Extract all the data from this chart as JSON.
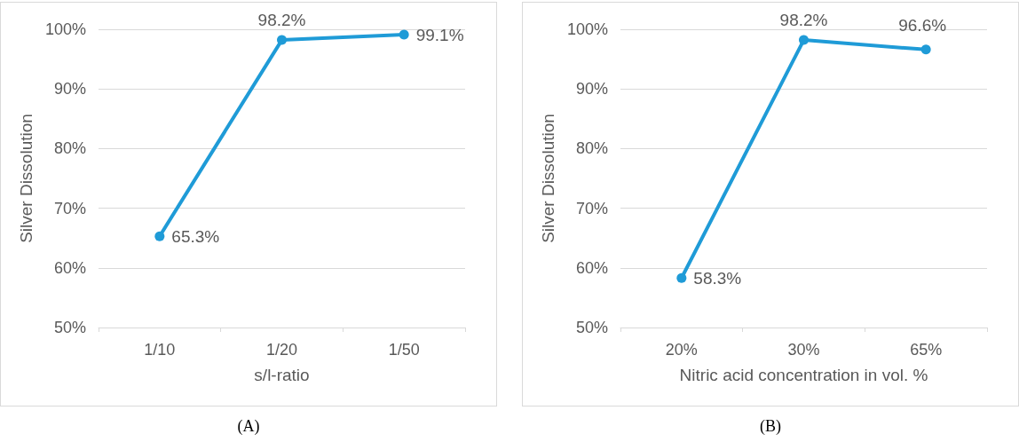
{
  "chart_data": [
    {
      "type": "line",
      "xlabel": "s/l-ratio",
      "ylabel": "Silver Dissolution",
      "categories": [
        "1/10",
        "1/20",
        "1/50"
      ],
      "series": [
        {
          "color": "#1f9bd7",
          "values": [
            65.3,
            98.2,
            99.1
          ],
          "value_labels": [
            "65.3%",
            "98.2%",
            "99.1%"
          ]
        }
      ],
      "ylim": [
        50,
        100
      ],
      "yticks": [
        {
          "value": 50,
          "label": "50%"
        },
        {
          "value": 60,
          "label": "60%"
        },
        {
          "value": 70,
          "label": "70%"
        },
        {
          "value": 80,
          "label": "80%"
        },
        {
          "value": 90,
          "label": "90%"
        },
        {
          "value": 100,
          "label": "100%"
        }
      ],
      "grid": "y",
      "marker": "circle",
      "line_style": "solid",
      "annotations": [
        "(A)"
      ]
    },
    {
      "type": "line",
      "xlabel": "Nitric acid concentration in vol. %",
      "ylabel": "Silver Dissolution",
      "categories": [
        "20%",
        "30%",
        "65%"
      ],
      "series": [
        {
          "color": "#1f9bd7",
          "values": [
            58.3,
            98.2,
            96.6
          ],
          "value_labels": [
            "58.3%",
            "98.2%",
            "96.6%"
          ]
        }
      ],
      "ylim": [
        50,
        100
      ],
      "yticks": [
        {
          "value": 50,
          "label": "50%"
        },
        {
          "value": 60,
          "label": "60%"
        },
        {
          "value": 70,
          "label": "70%"
        },
        {
          "value": 80,
          "label": "80%"
        },
        {
          "value": 90,
          "label": "90%"
        },
        {
          "value": 100,
          "label": "100%"
        }
      ],
      "grid": "y",
      "marker": "circle",
      "line_style": "solid",
      "annotations": [
        "(B)"
      ]
    }
  ]
}
